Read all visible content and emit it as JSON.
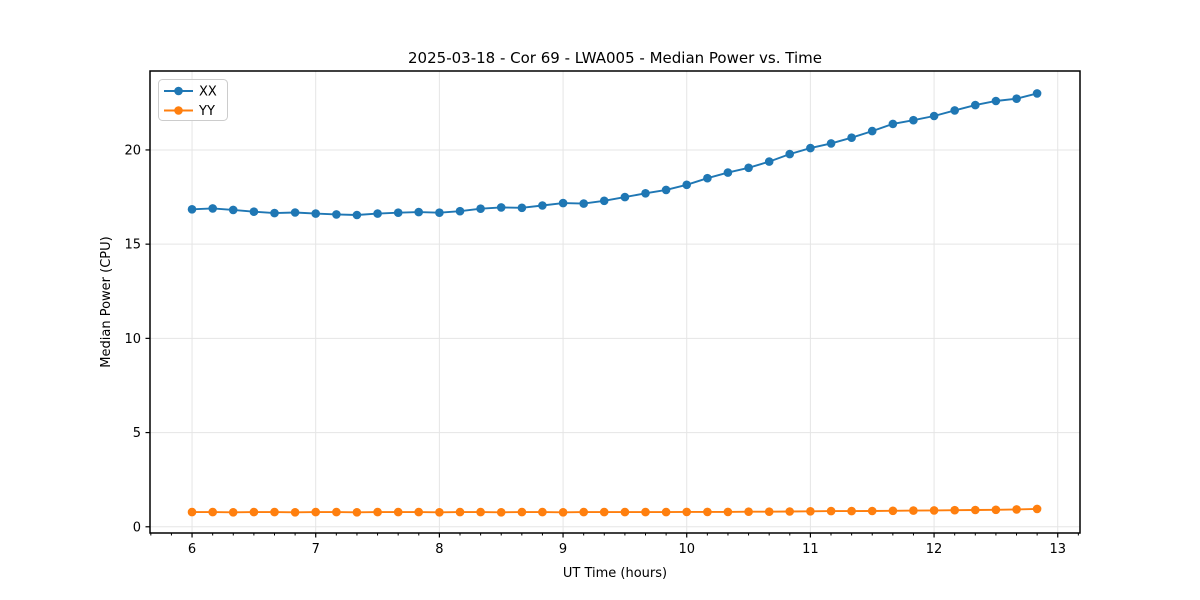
{
  "figure": {
    "background": "#ffffff"
  },
  "colors": {
    "blue_series": "#1f77b4",
    "orange_series": "#ff7f0e",
    "grid": "#e5e5e5",
    "spine": "#000000",
    "text": "#000000",
    "legend_border": "#cccccc",
    "legend_background": "#ffffff"
  },
  "chart_data": {
    "type": "line",
    "title": "2025-03-18 - Cor 69 - LWA005 - Median Power vs. Time",
    "xlabel": "UT Time (hours)",
    "ylabel": "Median Power (CPU)",
    "xlim": [
      5.66,
      13.18
    ],
    "ylim": [
      -0.33,
      24.19
    ],
    "x_ticks": [
      6,
      7,
      8,
      9,
      10,
      11,
      12,
      13
    ],
    "y_ticks": [
      0,
      5,
      10,
      15,
      20
    ],
    "x_minor_step": 0.166667,
    "grid": true,
    "legend_position": "upper-left",
    "legend_entries": [
      "XX",
      "YY"
    ],
    "x": [
      6.0,
      6.167,
      6.333,
      6.5,
      6.667,
      6.833,
      7.0,
      7.167,
      7.333,
      7.5,
      7.667,
      7.833,
      8.0,
      8.167,
      8.333,
      8.5,
      8.667,
      8.833,
      9.0,
      9.167,
      9.333,
      9.5,
      9.667,
      9.833,
      10.0,
      10.167,
      10.333,
      10.5,
      10.667,
      10.833,
      11.0,
      11.167,
      11.333,
      11.5,
      11.667,
      11.833,
      12.0,
      12.167,
      12.333,
      12.5,
      12.667,
      12.833
    ],
    "series": [
      {
        "name": "XX",
        "color": "#1f77b4",
        "values": [
          16.85,
          16.9,
          16.82,
          16.72,
          16.65,
          16.68,
          16.62,
          16.58,
          16.55,
          16.62,
          16.67,
          16.7,
          16.67,
          16.75,
          16.88,
          16.95,
          16.93,
          17.05,
          17.18,
          17.15,
          17.3,
          17.5,
          17.7,
          17.88,
          18.15,
          18.5,
          18.8,
          19.05,
          19.38,
          19.78,
          20.1,
          20.35,
          20.65,
          21.0,
          21.38,
          21.58,
          21.8,
          22.1,
          22.38,
          22.6,
          22.72,
          23.0
        ]
      },
      {
        "name": "YY",
        "color": "#ff7f0e",
        "values": [
          0.78,
          0.78,
          0.77,
          0.78,
          0.78,
          0.77,
          0.78,
          0.78,
          0.77,
          0.78,
          0.78,
          0.78,
          0.77,
          0.78,
          0.78,
          0.77,
          0.78,
          0.78,
          0.77,
          0.78,
          0.78,
          0.78,
          0.78,
          0.78,
          0.79,
          0.79,
          0.79,
          0.8,
          0.8,
          0.81,
          0.82,
          0.83,
          0.83,
          0.84,
          0.85,
          0.86,
          0.87,
          0.88,
          0.89,
          0.9,
          0.92,
          0.95
        ]
      }
    ]
  }
}
